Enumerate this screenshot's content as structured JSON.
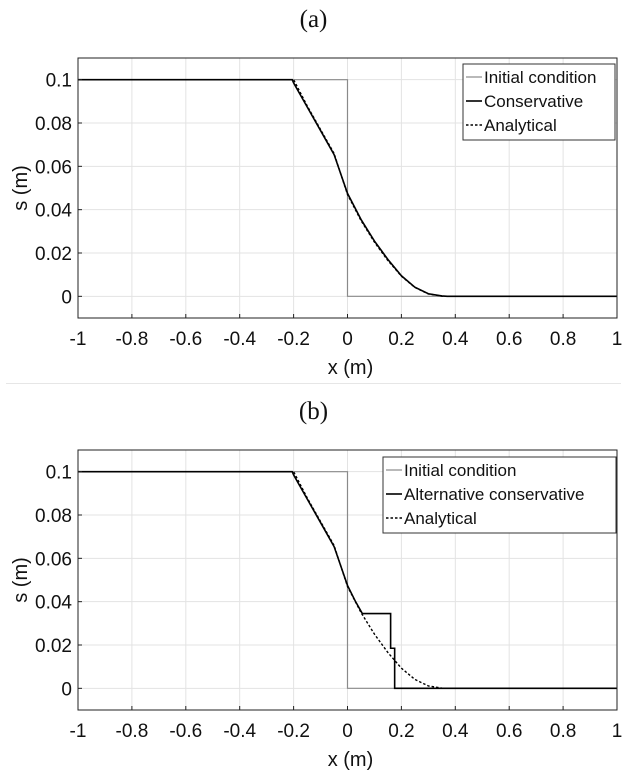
{
  "chart_data": [
    {
      "type": "line",
      "title": "(a)",
      "xlabel": "x (m)",
      "ylabel": "s (m)",
      "xlim": [
        -1,
        1
      ],
      "ylim": [
        -0.01,
        0.11
      ],
      "xticks": [
        -1,
        -0.8,
        -0.6,
        -0.4,
        -0.2,
        0,
        0.2,
        0.4,
        0.6,
        0.8,
        1
      ],
      "xtick_labels": [
        "-1",
        "-0.8",
        "-0.6",
        "-0.4",
        "-0.2",
        "0",
        "0.2",
        "0.4",
        "0.6",
        "0.8",
        "1"
      ],
      "yticks": [
        0,
        0.02,
        0.04,
        0.06,
        0.08,
        0.1
      ],
      "ytick_labels": [
        "0",
        "0.02",
        "0.04",
        "0.06",
        "0.08",
        "0.1"
      ],
      "grid": true,
      "legend_position": "top-right",
      "series": [
        {
          "name": "Initial condition",
          "style": "solid-thin",
          "color": "#8a8a8a",
          "x": [
            -1,
            0,
            0,
            1
          ],
          "y": [
            0.1,
            0.1,
            0,
            0
          ]
        },
        {
          "name": "Conservative",
          "style": "solid",
          "color": "#000000",
          "x": [
            -1,
            -0.205,
            -0.2,
            -0.15,
            -0.1,
            -0.05,
            0,
            0.05,
            0.1,
            0.15,
            0.2,
            0.25,
            0.3,
            0.35,
            0.37,
            1
          ],
          "y": [
            0.1,
            0.1,
            0.0985,
            0.0875,
            0.0765,
            0.0655,
            0.0475,
            0.0355,
            0.0255,
            0.017,
            0.0095,
            0.0042,
            0.0012,
            0.0002,
            0,
            0
          ]
        },
        {
          "name": "Analytical",
          "style": "dotted",
          "color": "#000000",
          "x": [
            -1,
            -0.2,
            -0.15,
            -0.1,
            -0.05,
            0,
            0.05,
            0.1,
            0.15,
            0.2,
            0.25,
            0.3,
            0.35,
            0.37,
            1
          ],
          "y": [
            0.1,
            0.1,
            0.088,
            0.077,
            0.066,
            0.047,
            0.035,
            0.025,
            0.0165,
            0.0093,
            0.0041,
            0.0011,
            0.0001,
            0,
            0
          ]
        }
      ]
    },
    {
      "type": "line",
      "title": "(b)",
      "xlabel": "x (m)",
      "ylabel": "s (m)",
      "xlim": [
        -1,
        1
      ],
      "ylim": [
        -0.01,
        0.11
      ],
      "xticks": [
        -1,
        -0.8,
        -0.6,
        -0.4,
        -0.2,
        0,
        0.2,
        0.4,
        0.6,
        0.8,
        1
      ],
      "xtick_labels": [
        "-1",
        "-0.8",
        "-0.6",
        "-0.4",
        "-0.2",
        "0",
        "0.2",
        "0.4",
        "0.6",
        "0.8",
        "1"
      ],
      "yticks": [
        0,
        0.02,
        0.04,
        0.06,
        0.08,
        0.1
      ],
      "ytick_labels": [
        "0",
        "0.02",
        "0.04",
        "0.06",
        "0.08",
        "0.1"
      ],
      "grid": true,
      "legend_position": "top-right",
      "series": [
        {
          "name": "Initial condition",
          "style": "solid-thin",
          "color": "#8a8a8a",
          "x": [
            -1,
            0,
            0,
            1
          ],
          "y": [
            0.1,
            0.1,
            0,
            0
          ]
        },
        {
          "name": "Alternative conservative",
          "style": "solid",
          "color": "#000000",
          "x": [
            -1,
            -0.205,
            -0.2,
            -0.15,
            -0.1,
            -0.05,
            0,
            0.03,
            0.055,
            0.16,
            0.16,
            0.175,
            0.175,
            1
          ],
          "y": [
            0.1,
            0.1,
            0.0985,
            0.0875,
            0.0765,
            0.0655,
            0.0475,
            0.04,
            0.0345,
            0.0345,
            0.0185,
            0.0185,
            0,
            0
          ]
        },
        {
          "name": "Analytical",
          "style": "dotted",
          "color": "#000000",
          "x": [
            -1,
            -0.2,
            -0.15,
            -0.1,
            -0.05,
            0,
            0.05,
            0.1,
            0.15,
            0.2,
            0.25,
            0.3,
            0.35,
            0.37,
            1
          ],
          "y": [
            0.1,
            0.1,
            0.088,
            0.077,
            0.066,
            0.047,
            0.035,
            0.025,
            0.0165,
            0.0093,
            0.0041,
            0.0011,
            0.0001,
            0,
            0
          ]
        }
      ]
    }
  ]
}
